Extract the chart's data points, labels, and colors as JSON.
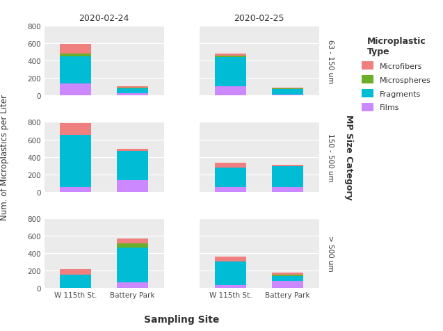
{
  "dates": [
    "2020-02-24",
    "2020-02-25"
  ],
  "sites": [
    "W 115th St.",
    "Battery Park"
  ],
  "size_categories": [
    "63 - 150 um",
    "150 - 500 um",
    "> 500 um"
  ],
  "mp_types": [
    "Films",
    "Fragments",
    "Microspheres",
    "Microfibers"
  ],
  "colors": {
    "Microfibers": "#F08080",
    "Microspheres": "#6BAF28",
    "Fragments": "#00BCD4",
    "Films": "#CC88FF"
  },
  "data": {
    "63 - 150 um": {
      "2020-02-24": {
        "W 115th St.": {
          "Films": 140,
          "Fragments": 310,
          "Microspheres": 30,
          "Microfibers": 110
        },
        "Battery Park": {
          "Films": 30,
          "Fragments": 55,
          "Microspheres": 5,
          "Microfibers": 20
        }
      },
      "2020-02-25": {
        "W 115th St.": {
          "Films": 110,
          "Fragments": 330,
          "Microspheres": 15,
          "Microfibers": 25
        },
        "Battery Park": {
          "Films": 10,
          "Fragments": 65,
          "Microspheres": 5,
          "Microfibers": 10
        }
      }
    },
    "150 - 500 um": {
      "2020-02-24": {
        "W 115th St.": {
          "Films": 50,
          "Fragments": 600,
          "Microspheres": 0,
          "Microfibers": 140
        },
        "Battery Park": {
          "Films": 130,
          "Fragments": 340,
          "Microspheres": 0,
          "Microfibers": 20
        }
      },
      "2020-02-25": {
        "W 115th St.": {
          "Films": 50,
          "Fragments": 230,
          "Microspheres": 0,
          "Microfibers": 50
        },
        "Battery Park": {
          "Films": 50,
          "Fragments": 240,
          "Microspheres": 0,
          "Microfibers": 20
        }
      }
    },
    "> 500 um": {
      "2020-02-24": {
        "W 115th St.": {
          "Films": 0,
          "Fragments": 150,
          "Microspheres": 0,
          "Microfibers": 65
        },
        "Battery Park": {
          "Films": 60,
          "Fragments": 400,
          "Microspheres": 50,
          "Microfibers": 60
        }
      },
      "2020-02-25": {
        "W 115th St.": {
          "Films": 30,
          "Fragments": 270,
          "Microspheres": 5,
          "Microfibers": 55
        },
        "Battery Park": {
          "Films": 80,
          "Fragments": 55,
          "Microspheres": 20,
          "Microfibers": 20
        }
      }
    }
  },
  "ylabel": "Num. of Microplastics per Liter",
  "xlabel": "Sampling Site",
  "right_strip_label": "MP Size Category",
  "ylim": [
    0,
    800
  ],
  "yticks": [
    0,
    200,
    400,
    600,
    800
  ],
  "panel_bg": "#EBEBEB",
  "strip_bg": "#D3D3D3",
  "fig_bg": "#FFFFFF",
  "bar_width": 0.55,
  "legend_title": "Microplastic\nType"
}
